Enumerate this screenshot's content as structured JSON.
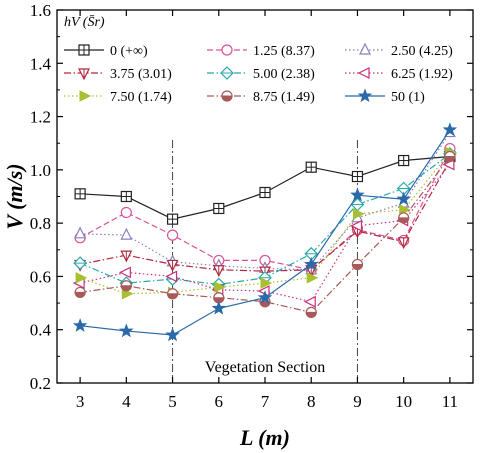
{
  "chart_data": {
    "type": "line",
    "x": [
      3,
      4,
      5,
      6,
      7,
      8,
      9,
      10,
      11
    ],
    "xlabel": "L (m)",
    "ylabel": "V (m/s)",
    "xlim": [
      2.5,
      11.5
    ],
    "ylim": [
      0.2,
      1.6
    ],
    "xticks": [
      "3",
      "4",
      "5",
      "6",
      "7",
      "8",
      "9",
      "10",
      "11"
    ],
    "yticks": [
      "0.2",
      "0.4",
      "0.6",
      "0.8",
      "1.0",
      "1.2",
      "1.4",
      "1.6"
    ],
    "grid": false,
    "legend_title": "hV (S̄r)",
    "legend_position": "top",
    "annotation": "Vegetation Section",
    "vlines": [
      5,
      9
    ],
    "series": [
      {
        "name": "0 (+∞)",
        "color": "#222222",
        "dash": "solid",
        "marker": "square-cross",
        "values": [
          0.91,
          0.9,
          0.815,
          0.855,
          0.915,
          1.01,
          0.975,
          1.035,
          1.05
        ]
      },
      {
        "name": "1.25 (8.37)",
        "color": "#d9529a",
        "dash": "dashed",
        "marker": "circle",
        "values": [
          0.745,
          0.84,
          0.755,
          0.66,
          0.66,
          0.625,
          0.775,
          0.735,
          1.08
        ]
      },
      {
        "name": "2.50 (4.25)",
        "color": "#8a7fc0",
        "dash": "dotted",
        "marker": "triangle-up",
        "values": [
          0.76,
          0.755,
          0.655,
          0.64,
          0.63,
          0.625,
          0.82,
          0.875,
          1.14
        ]
      },
      {
        "name": "3.75 (3.01)",
        "color": "#b0283c",
        "dash": "dashdot",
        "marker": "triangle-down",
        "values": [
          0.645,
          0.68,
          0.645,
          0.625,
          0.62,
          0.625,
          0.77,
          0.73,
          1.035
        ]
      },
      {
        "name": "5.00 (2.38)",
        "color": "#2aa8a8",
        "dash": "dashdot",
        "marker": "diamond",
        "values": [
          0.65,
          0.575,
          0.59,
          0.57,
          0.595,
          0.685,
          0.87,
          0.93,
          1.06
        ]
      },
      {
        "name": "6.25 (1.92)",
        "color": "#c8307a",
        "dash": "dotted",
        "marker": "triangle-left",
        "values": [
          0.575,
          0.615,
          0.6,
          0.55,
          0.545,
          0.505,
          0.79,
          0.81,
          1.02
        ]
      },
      {
        "name": "7.50 (1.74)",
        "color": "#a8c030",
        "dash": "dotted",
        "marker": "triangle-right",
        "values": [
          0.595,
          0.535,
          0.54,
          0.56,
          0.575,
          0.595,
          0.835,
          0.85,
          1.065
        ]
      },
      {
        "name": "8.75 (1.49)",
        "color": "#a85a5a",
        "dash": "dashdot",
        "marker": "half-circle",
        "values": [
          0.54,
          0.565,
          0.535,
          0.52,
          0.505,
          0.465,
          0.645,
          0.82,
          1.05
        ]
      },
      {
        "name": "50 (1)",
        "color": "#2a6aa8",
        "dash": "solid",
        "marker": "star",
        "values": [
          0.415,
          0.395,
          0.38,
          0.48,
          0.52,
          0.645,
          0.905,
          0.89,
          1.15
        ]
      }
    ]
  }
}
